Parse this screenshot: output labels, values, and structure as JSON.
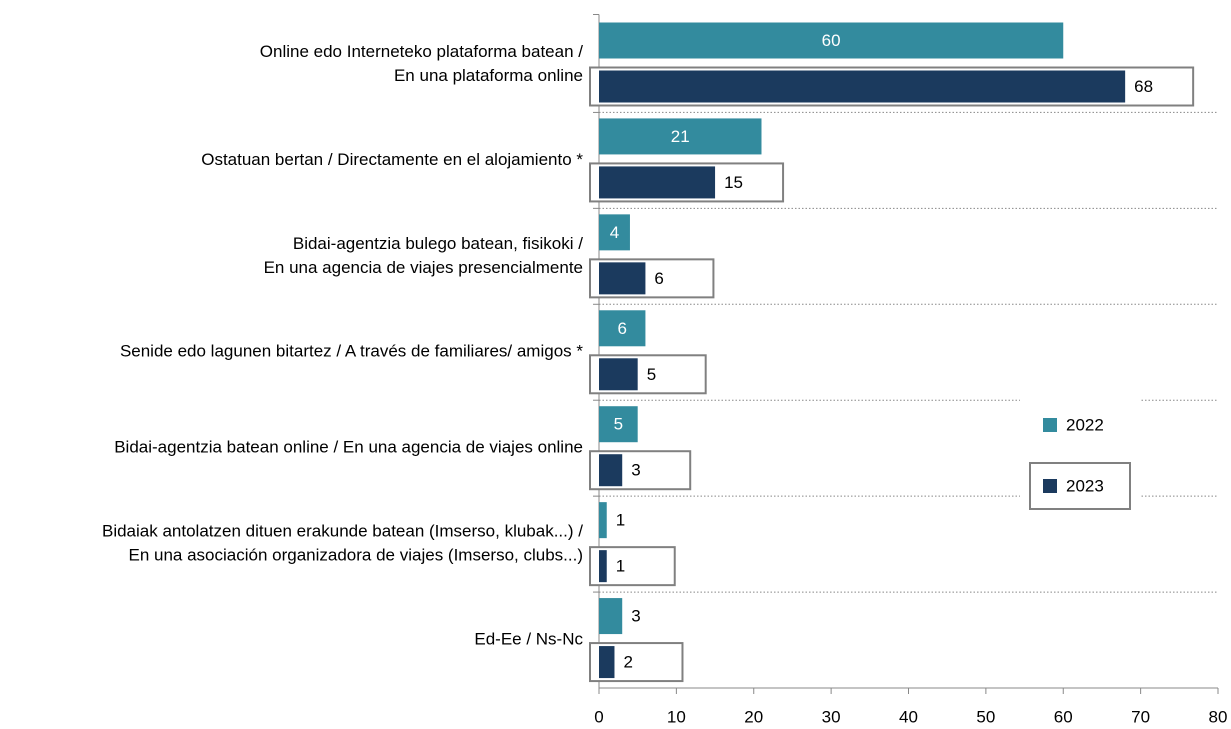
{
  "chart_data": {
    "type": "hbar",
    "categories": [
      [
        "Online edo Interneteko plataforma batean /",
        "En una plataforma online"
      ],
      [
        "Ostatuan bertan / Directamente en el alojamiento *"
      ],
      [
        "Bidai-agentzia bulego batean, fisikoki /",
        "En una agencia de viajes presencialmente"
      ],
      [
        "Senide edo lagunen bitartez / A través de familiares/ amigos *"
      ],
      [
        "Bidai-agentzia batean online / En una agencia de viajes online"
      ],
      [
        "Bidaiak antolatzen dituen erakunde batean (Imserso, klubak...) /",
        "En una asociación organizadora de viajes (Imserso, clubs...)"
      ],
      [
        "Ed-Ee / Ns-Nc"
      ]
    ],
    "series": [
      {
        "name": "2022",
        "color": "#338b9e",
        "values": [
          60,
          21,
          4,
          6,
          5,
          1,
          3
        ]
      },
      {
        "name": "2023",
        "color": "#1b3a5e",
        "values": [
          68,
          15,
          6,
          5,
          3,
          1,
          2
        ]
      }
    ],
    "xlim": [
      0,
      80
    ],
    "xticks": [
      0,
      10,
      20,
      30,
      40,
      50,
      60,
      70,
      80
    ],
    "legend": "right"
  }
}
